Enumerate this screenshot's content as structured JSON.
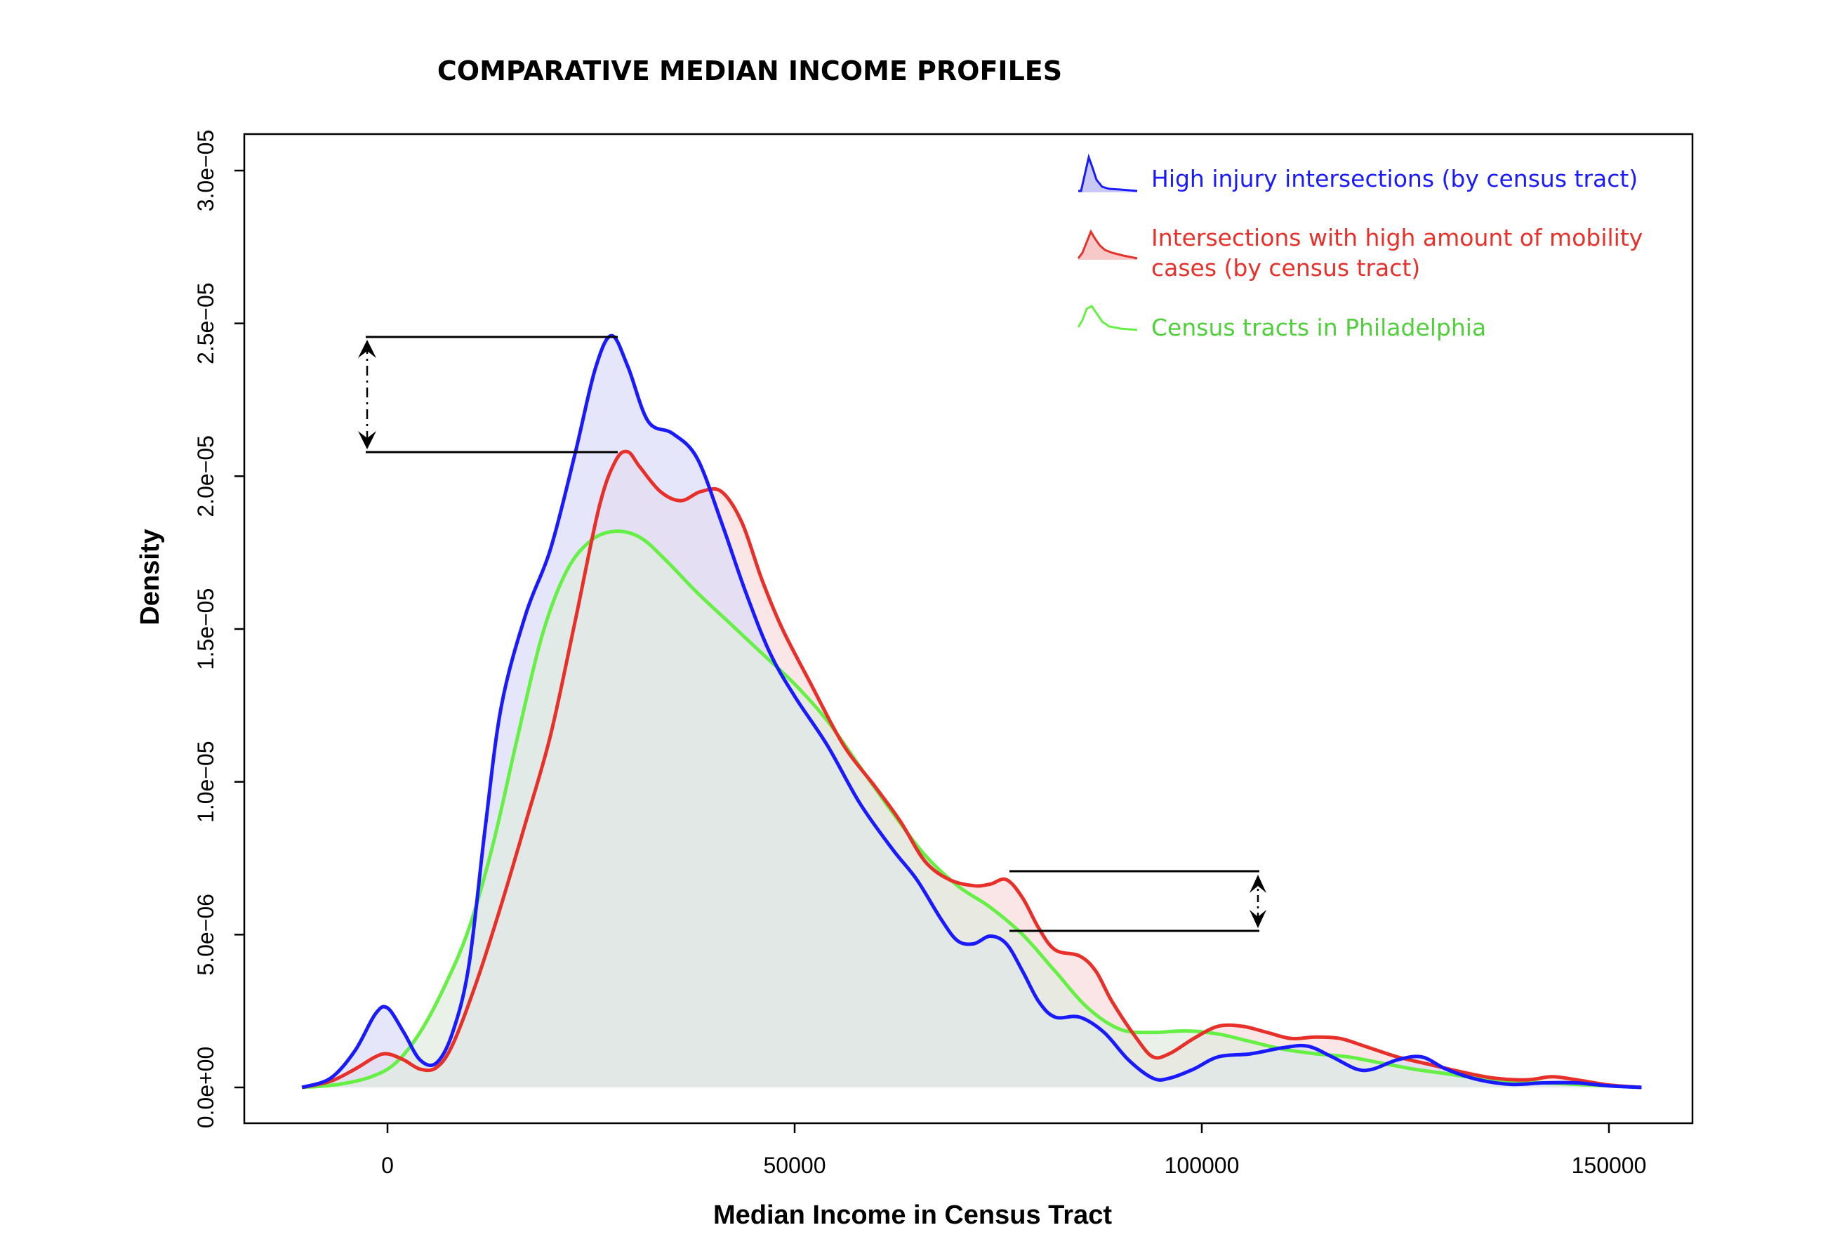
{
  "chart_data": {
    "type": "area",
    "title": "COMPARATIVE MEDIAN INCOME PROFILES",
    "xlabel": "Median Income in Census Tract",
    "ylabel": "Density",
    "xlim": [
      -18000,
      160000
    ],
    "ylim": [
      -1.2e-06,
      3.13e-05
    ],
    "x_ticks": [
      0,
      50000,
      100000,
      150000
    ],
    "x_tick_labels": [
      "0",
      "50000",
      "100000",
      "150000"
    ],
    "y_ticks": [
      0,
      5e-06,
      1e-05,
      1.5e-05,
      2e-05,
      2.5e-05,
      3e-05
    ],
    "y_tick_labels": [
      "0.0e+00",
      "5.0e−06",
      "1.0e−05",
      "1.5e−05",
      "2.0e−05",
      "2.5e−05",
      "3.0e−05"
    ],
    "grid": false,
    "legend_position": "top-right",
    "series": [
      {
        "name": "High injury intersections (by census tract)",
        "color": "#1a1aff",
        "fill": "#dcdcf8",
        "points": [
          [
            -10500,
            0
          ],
          [
            -7000,
            3e-07
          ],
          [
            -4000,
            1.2e-06
          ],
          [
            -1500,
            2.4e-06
          ],
          [
            0,
            2.6e-06
          ],
          [
            2000,
            1.8e-06
          ],
          [
            4000,
            9e-07
          ],
          [
            6000,
            8e-07
          ],
          [
            8000,
            1.8e-06
          ],
          [
            10000,
            4e-06
          ],
          [
            12000,
            8.5e-06
          ],
          [
            14000,
            1.25e-05
          ],
          [
            17000,
            1.55e-05
          ],
          [
            20000,
            1.76e-05
          ],
          [
            23000,
            2.07e-05
          ],
          [
            25500,
            2.35e-05
          ],
          [
            27500,
            2.46e-05
          ],
          [
            29500,
            2.36e-05
          ],
          [
            32000,
            2.18e-05
          ],
          [
            35000,
            2.14e-05
          ],
          [
            38000,
            2.06e-05
          ],
          [
            41000,
            1.85e-05
          ],
          [
            44000,
            1.62e-05
          ],
          [
            47000,
            1.42e-05
          ],
          [
            50000,
            1.28e-05
          ],
          [
            54000,
            1.12e-05
          ],
          [
            58000,
            9.3e-06
          ],
          [
            62000,
            7.8e-06
          ],
          [
            65000,
            6.8e-06
          ],
          [
            68000,
            5.5e-06
          ],
          [
            70000,
            4.8e-06
          ],
          [
            72000,
            4.7e-06
          ],
          [
            74000,
            4.95e-06
          ],
          [
            76000,
            4.7e-06
          ],
          [
            78000,
            3.8e-06
          ],
          [
            80000,
            2.8e-06
          ],
          [
            82000,
            2.3e-06
          ],
          [
            85000,
            2.3e-06
          ],
          [
            88000,
            1.8e-06
          ],
          [
            91000,
            9e-07
          ],
          [
            94000,
            3e-07
          ],
          [
            96000,
            3e-07
          ],
          [
            99000,
            6e-07
          ],
          [
            102000,
            1e-06
          ],
          [
            106000,
            1.1e-06
          ],
          [
            110000,
            1.3e-06
          ],
          [
            113000,
            1.35e-06
          ],
          [
            116000,
            1e-06
          ],
          [
            119000,
            6e-07
          ],
          [
            121000,
            6e-07
          ],
          [
            124000,
            9e-07
          ],
          [
            127000,
            1e-06
          ],
          [
            130000,
            6e-07
          ],
          [
            134000,
            2.5e-07
          ],
          [
            138000,
            1e-07
          ],
          [
            142000,
            1.5e-07
          ],
          [
            146000,
            1.5e-07
          ],
          [
            150000,
            5e-08
          ],
          [
            154000,
            0
          ]
        ]
      },
      {
        "name": "Intersections with high amount of mobility cases (by census tract)",
        "color": "#e8302a",
        "fill": "#f8dcdc",
        "points": [
          [
            -10500,
            0
          ],
          [
            -7000,
            2e-07
          ],
          [
            -4000,
            6e-07
          ],
          [
            -1500,
            1e-06
          ],
          [
            0,
            1.1e-06
          ],
          [
            2000,
            9e-07
          ],
          [
            4000,
            6e-07
          ],
          [
            6000,
            6.5e-07
          ],
          [
            8000,
            1.4e-06
          ],
          [
            11000,
            3.5e-06
          ],
          [
            14000,
            6e-06
          ],
          [
            17000,
            8.7e-06
          ],
          [
            20000,
            1.15e-05
          ],
          [
            23000,
            1.52e-05
          ],
          [
            26000,
            1.9e-05
          ],
          [
            28000,
            2.05e-05
          ],
          [
            29500,
            2.08e-05
          ],
          [
            31000,
            2.03e-05
          ],
          [
            33500,
            1.95e-05
          ],
          [
            36000,
            1.92e-05
          ],
          [
            38500,
            1.95e-05
          ],
          [
            41000,
            1.95e-05
          ],
          [
            43500,
            1.85e-05
          ],
          [
            46000,
            1.66e-05
          ],
          [
            48500,
            1.5e-05
          ],
          [
            52000,
            1.32e-05
          ],
          [
            56000,
            1.12e-05
          ],
          [
            60000,
            9.8e-06
          ],
          [
            63000,
            8.7e-06
          ],
          [
            66000,
            7.4e-06
          ],
          [
            69000,
            6.8e-06
          ],
          [
            72000,
            6.6e-06
          ],
          [
            74000,
            6.65e-06
          ],
          [
            76000,
            6.8e-06
          ],
          [
            78000,
            6.2e-06
          ],
          [
            80000,
            5.2e-06
          ],
          [
            82000,
            4.5e-06
          ],
          [
            85000,
            4.3e-06
          ],
          [
            87000,
            3.8e-06
          ],
          [
            89000,
            2.8e-06
          ],
          [
            92000,
            1.6e-06
          ],
          [
            94000,
            1e-06
          ],
          [
            96000,
            1.1e-06
          ],
          [
            99000,
            1.6e-06
          ],
          [
            102000,
            2e-06
          ],
          [
            105000,
            2e-06
          ],
          [
            108000,
            1.8e-06
          ],
          [
            111000,
            1.6e-06
          ],
          [
            114000,
            1.65e-06
          ],
          [
            117000,
            1.6e-06
          ],
          [
            120000,
            1.35e-06
          ],
          [
            124000,
            1e-06
          ],
          [
            128000,
            7.5e-07
          ],
          [
            132000,
            5e-07
          ],
          [
            136000,
            3e-07
          ],
          [
            140000,
            2.5e-07
          ],
          [
            143000,
            3.5e-07
          ],
          [
            146000,
            2.5e-07
          ],
          [
            150000,
            8e-08
          ],
          [
            154000,
            0
          ]
        ]
      },
      {
        "name": "Census tracts in Philadelphia",
        "color": "#66f046",
        "fill": "#e0ece0",
        "points": [
          [
            -10500,
            0
          ],
          [
            -6000,
            1e-07
          ],
          [
            -2000,
            3.5e-07
          ],
          [
            1000,
            8e-07
          ],
          [
            4000,
            1.8e-06
          ],
          [
            7000,
            3.3e-06
          ],
          [
            10000,
            5.2e-06
          ],
          [
            13000,
            8e-06
          ],
          [
            16000,
            1.15e-05
          ],
          [
            19000,
            1.48e-05
          ],
          [
            22000,
            1.69e-05
          ],
          [
            25000,
            1.79e-05
          ],
          [
            28000,
            1.82e-05
          ],
          [
            31000,
            1.8e-05
          ],
          [
            34000,
            1.73e-05
          ],
          [
            38000,
            1.62e-05
          ],
          [
            42000,
            1.52e-05
          ],
          [
            46000,
            1.42e-05
          ],
          [
            50000,
            1.32e-05
          ],
          [
            54000,
            1.2e-05
          ],
          [
            58000,
            1.05e-05
          ],
          [
            62000,
            9e-06
          ],
          [
            66000,
            7.6e-06
          ],
          [
            70000,
            6.6e-06
          ],
          [
            74000,
            5.9e-06
          ],
          [
            78000,
            5e-06
          ],
          [
            82000,
            3.8e-06
          ],
          [
            86000,
            2.6e-06
          ],
          [
            90000,
            1.9e-06
          ],
          [
            94000,
            1.8e-06
          ],
          [
            98000,
            1.85e-06
          ],
          [
            102000,
            1.75e-06
          ],
          [
            106000,
            1.5e-06
          ],
          [
            110000,
            1.25e-06
          ],
          [
            114000,
            1.1e-06
          ],
          [
            118000,
            1e-06
          ],
          [
            122000,
            8e-07
          ],
          [
            126000,
            6e-07
          ],
          [
            130000,
            4.5e-07
          ],
          [
            134000,
            3e-07
          ],
          [
            138000,
            2e-07
          ],
          [
            142000,
            1.5e-07
          ],
          [
            146000,
            1e-07
          ],
          [
            150000,
            5e-08
          ],
          [
            154000,
            0
          ]
        ]
      }
    ]
  }
}
